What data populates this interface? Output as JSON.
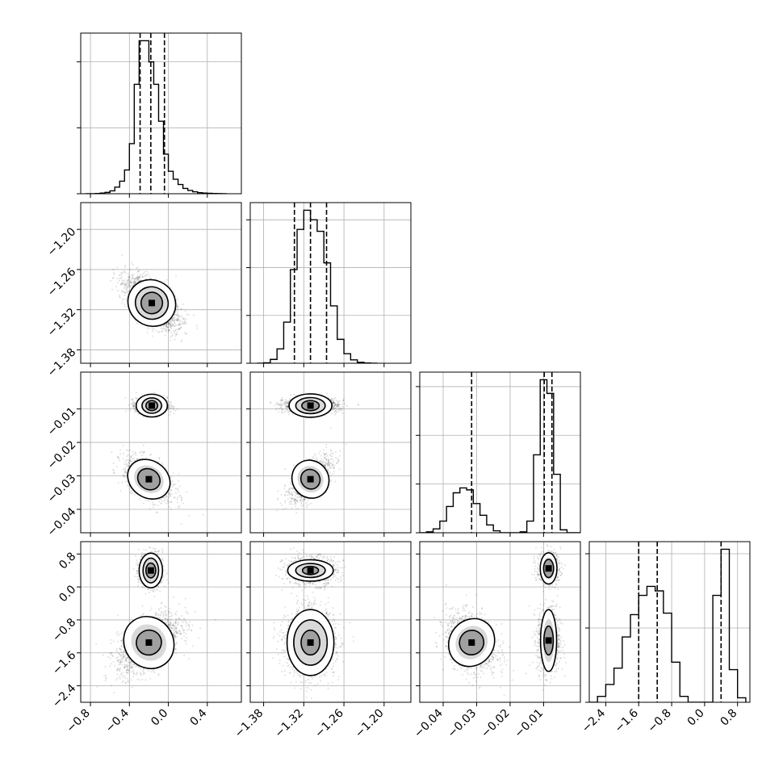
{
  "chart_data": {
    "type": "corner",
    "grid": true,
    "quantile_line_style": "dashed",
    "density_colormap": "greys",
    "variables": [
      {
        "range": [
          -0.9,
          0.75
        ],
        "ticks": [
          -0.8,
          -0.4,
          0.0,
          0.4
        ],
        "tick_labels": [
          "−0.8",
          "−0.4",
          "0.0",
          "0.4"
        ],
        "quantiles": [
          -0.29,
          -0.18,
          -0.04
        ]
      },
      {
        "range": [
          -1.4,
          -1.16
        ],
        "ticks": [
          -1.38,
          -1.32,
          -1.26,
          -1.2
        ],
        "tick_labels": [
          "−1.38",
          "−1.32",
          "−1.26",
          "−1.20"
        ],
        "quantiles": [
          -1.334,
          -1.31,
          -1.286
        ]
      },
      {
        "range": [
          -0.047,
          0.001
        ],
        "ticks": [
          -0.04,
          -0.03,
          -0.02,
          -0.01
        ],
        "tick_labels": [
          "−0.04",
          "−0.03",
          "−0.02",
          "−0.01"
        ],
        "quantiles": [
          -0.0315,
          -0.0098,
          -0.0075
        ]
      },
      {
        "range": [
          -2.8,
          1.1
        ],
        "ticks": [
          -2.4,
          -1.6,
          -0.8,
          0.0,
          0.8
        ],
        "tick_labels": [
          "−2.4",
          "−1.6",
          "−0.8",
          "0.0",
          "0.8"
        ],
        "quantiles": [
          -1.6,
          -1.15,
          0.4
        ]
      }
    ],
    "histograms": [
      {
        "variable": 0,
        "bins": [
          -0.85,
          -0.8,
          -0.75,
          -0.7,
          -0.65,
          -0.6,
          -0.55,
          -0.5,
          -0.45,
          -0.4,
          -0.35,
          -0.3,
          -0.25,
          -0.2,
          -0.15,
          -0.1,
          -0.05,
          0.0,
          0.05,
          0.1,
          0.15,
          0.2,
          0.25,
          0.3,
          0.35,
          0.4,
          0.45,
          0.5,
          0.55,
          0.6
        ],
        "counts": [
          0,
          0,
          2,
          5,
          10,
          22,
          50,
          95,
          180,
          380,
          830,
          1160,
          1160,
          1000,
          830,
          550,
          300,
          170,
          110,
          70,
          40,
          25,
          15,
          8,
          5,
          3,
          2,
          1,
          0
        ]
      },
      {
        "variable": 1,
        "bins": [
          -1.39,
          -1.38,
          -1.37,
          -1.36,
          -1.35,
          -1.34,
          -1.33,
          -1.32,
          -1.31,
          -1.3,
          -1.29,
          -1.28,
          -1.27,
          -1.26,
          -1.25,
          -1.24,
          -1.23,
          -1.22,
          -1.21
        ],
        "counts": [
          0,
          5,
          40,
          150,
          430,
          980,
          1400,
          1600,
          1500,
          1380,
          1050,
          600,
          250,
          100,
          35,
          10,
          3,
          0
        ]
      },
      {
        "variable": 2,
        "bins": [
          -0.047,
          -0.045,
          -0.043,
          -0.041,
          -0.039,
          -0.037,
          -0.035,
          -0.033,
          -0.031,
          -0.029,
          -0.027,
          -0.025,
          -0.023,
          -0.021,
          -0.019,
          -0.017,
          -0.015,
          -0.013,
          -0.011,
          -0.009,
          -0.007,
          -0.005,
          -0.003,
          -0.001,
          0.001
        ],
        "counts": [
          0,
          10,
          40,
          120,
          270,
          410,
          460,
          440,
          300,
          180,
          80,
          20,
          0,
          0,
          0,
          10,
          120,
          800,
          1570,
          1430,
          600,
          30,
          0,
          0
        ]
      },
      {
        "variable": 3,
        "bins": [
          -2.8,
          -2.6,
          -2.4,
          -2.2,
          -2.0,
          -1.8,
          -1.6,
          -1.4,
          -1.2,
          -1.0,
          -0.8,
          -0.6,
          -0.4,
          -0.2,
          0.0,
          0.2,
          0.4,
          0.6,
          0.8,
          1.0
        ],
        "counts": [
          0,
          40,
          120,
          230,
          440,
          590,
          720,
          780,
          750,
          600,
          270,
          40,
          0,
          0,
          0,
          720,
          1030,
          220,
          30
        ]
      }
    ],
    "scatter_panels": [
      {
        "x": 0,
        "y": 1,
        "clusters": [
          {
            "center": [
              -0.17,
              -1.31
            ],
            "spread": [
              0.13,
              0.018
            ],
            "corr": -0.6,
            "weight": 1.0,
            "contours": [
              [
                0.11,
                0.016
              ],
              [
                0.17,
                0.024
              ],
              [
                0.25,
                0.034
              ]
            ]
          }
        ]
      },
      {
        "x": 0,
        "y": 2,
        "clusters": [
          {
            "center": [
              -0.17,
              -0.009
            ],
            "spread": [
              0.08,
              0.0011
            ],
            "corr": 0.0,
            "weight": 0.6,
            "contours": [
              [
                0.06,
                0.0015
              ],
              [
                0.1,
                0.0023
              ],
              [
                0.16,
                0.0034
              ]
            ]
          },
          {
            "center": [
              -0.2,
              -0.031
            ],
            "spread": [
              0.13,
              0.0034
            ],
            "corr": -0.55,
            "weight": 0.4,
            "contours": [
              [
                0.12,
                0.003
              ],
              [
                0.23,
                0.0055
              ]
            ]
          }
        ]
      },
      {
        "x": 1,
        "y": 2,
        "clusters": [
          {
            "center": [
              -1.31,
              -0.009
            ],
            "spread": [
              0.02,
              0.0011
            ],
            "corr": 0.0,
            "weight": 0.6,
            "contours": [
              [
                0.013,
                0.0015
              ],
              [
                0.022,
                0.0024
              ],
              [
                0.032,
                0.0035
              ]
            ]
          },
          {
            "center": [
              -1.31,
              -0.031
            ],
            "spread": [
              0.016,
              0.0034
            ],
            "corr": 0.65,
            "weight": 0.4,
            "contours": [
              [
                0.014,
                0.003
              ],
              [
                0.027,
                0.0058
              ]
            ]
          }
        ]
      },
      {
        "x": 0,
        "y": 3,
        "clusters": [
          {
            "center": [
              -0.18,
              0.4
            ],
            "spread": [
              0.06,
              0.22
            ],
            "corr": 0.0,
            "weight": 0.3,
            "contours": [
              [
                0.05,
                0.18
              ],
              [
                0.08,
                0.3
              ],
              [
                0.12,
                0.42
              ]
            ]
          },
          {
            "center": [
              -0.2,
              -1.35
            ],
            "spread": [
              0.16,
              0.35
            ],
            "corr": 0.55,
            "weight": 0.7,
            "contours": [
              [
                0.13,
                0.3
              ],
              [
                0.25,
                0.65
              ]
            ]
          }
        ]
      },
      {
        "x": 1,
        "y": 3,
        "clusters": [
          {
            "center": [
              -1.31,
              0.4
            ],
            "spread": [
              0.02,
              0.18
            ],
            "corr": 0.0,
            "weight": 0.3,
            "contours": [
              [
                0.012,
                0.1
              ],
              [
                0.022,
                0.17
              ],
              [
                0.034,
                0.26
              ]
            ]
          },
          {
            "center": [
              -1.31,
              -1.35
            ],
            "spread": [
              0.018,
              0.4
            ],
            "corr": 0.0,
            "weight": 0.7,
            "contours": [
              [
                0.014,
                0.3
              ],
              [
                0.025,
                0.55
              ],
              [
                0.035,
                0.8
              ]
            ]
          }
        ]
      },
      {
        "x": 2,
        "y": 3,
        "clusters": [
          {
            "center": [
              -0.0085,
              0.45
            ],
            "spread": [
              0.0018,
              0.22
            ],
            "corr": 0.0,
            "weight": 0.15,
            "contours": [
              [
                0.0015,
                0.22
              ],
              [
                0.0025,
                0.38
              ]
            ]
          },
          {
            "center": [
              -0.0085,
              -1.3
            ],
            "spread": [
              0.0017,
              0.4
            ],
            "corr": 0.0,
            "weight": 0.35,
            "contours": [
              [
                0.0014,
                0.35
              ],
              [
                0.0024,
                0.75
              ]
            ]
          },
          {
            "center": [
              -0.0315,
              -1.35
            ],
            "spread": [
              0.0038,
              0.35
            ],
            "corr": -0.3,
            "weight": 0.5,
            "contours": [
              [
                0.0036,
                0.3
              ],
              [
                0.0066,
                0.6
              ]
            ]
          }
        ]
      }
    ]
  }
}
